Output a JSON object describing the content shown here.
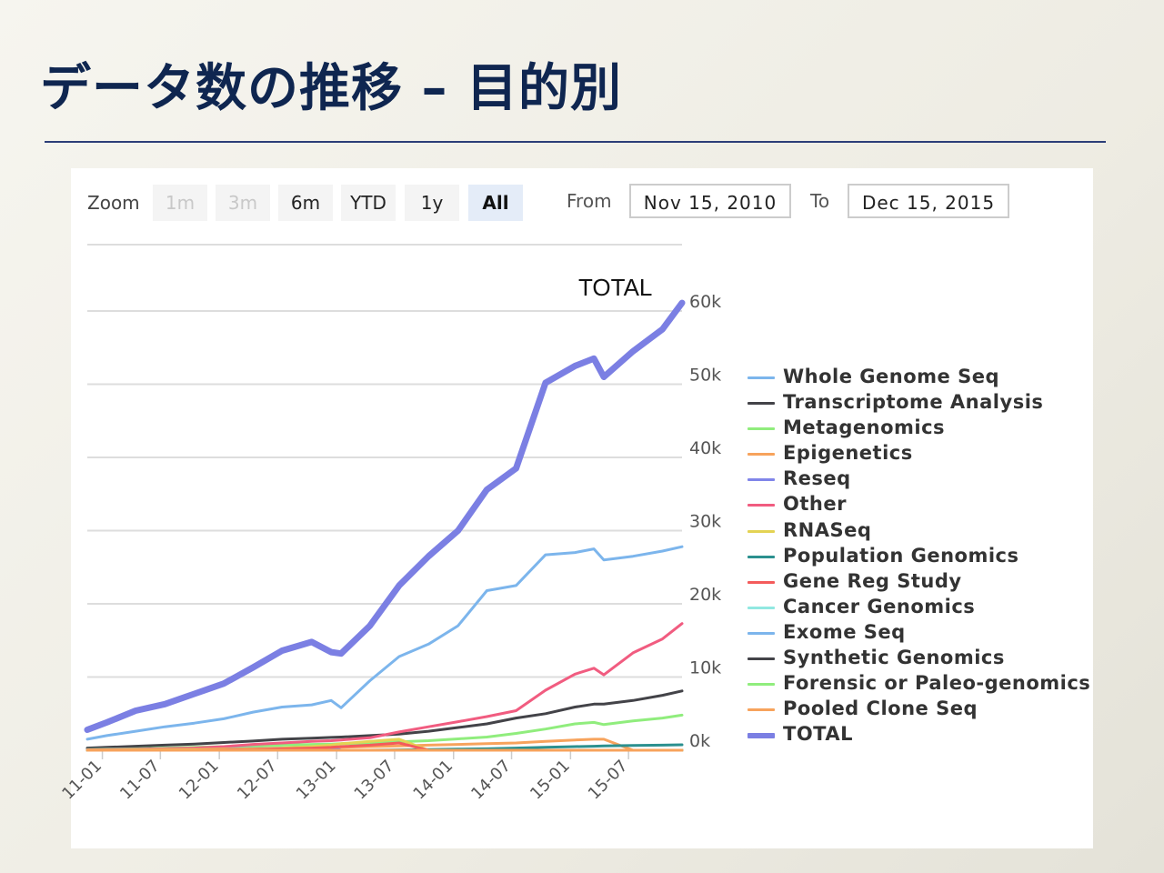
{
  "slide": {
    "title": "データ数の推移 – 目的別"
  },
  "toolbar": {
    "zoom_label": "Zoom",
    "buttons": [
      {
        "label": "1m",
        "state": "disabled"
      },
      {
        "label": "3m",
        "state": "disabled"
      },
      {
        "label": "6m",
        "state": "normal"
      },
      {
        "label": "YTD",
        "state": "normal"
      },
      {
        "label": "1y",
        "state": "normal"
      },
      {
        "label": "All",
        "state": "active"
      }
    ],
    "from_label": "From",
    "from_value": "Nov 15, 2010",
    "to_label": "To",
    "to_value": "Dec 15, 2015"
  },
  "chart_data": {
    "type": "line",
    "annotation": "TOTAL",
    "grid": true,
    "legend_position": "right",
    "y_axis_side": "right",
    "ylim": [
      0,
      60000
    ],
    "yticks": [
      "0k",
      "10k",
      "20k",
      "30k",
      "40k",
      "50k",
      "60k"
    ],
    "xticks": [
      "11-01",
      "11-07",
      "12-01",
      "12-07",
      "13-01",
      "13-07",
      "14-01",
      "14-07",
      "15-01",
      "15-07"
    ],
    "x": [
      "2010-11",
      "2011-01",
      "2011-04",
      "2011-07",
      "2011-10",
      "2012-01",
      "2012-04",
      "2012-07",
      "2012-10",
      "2012-12",
      "2013-01",
      "2013-04",
      "2013-07",
      "2013-10",
      "2014-01",
      "2014-04",
      "2014-07",
      "2014-10",
      "2015-01",
      "2015-03",
      "2015-04",
      "2015-07",
      "2015-10",
      "2015-12"
    ],
    "series": [
      {
        "name": "Whole Genome Seq",
        "color": "#7cb5ec",
        "values": [
          1500,
          2000,
          2600,
          3200,
          3700,
          4300,
          5200,
          5900,
          6200,
          6800,
          5800,
          9500,
          12800,
          14500,
          17000,
          21800,
          22500,
          26700,
          27000,
          27500,
          26000,
          26500,
          27200,
          27800
        ]
      },
      {
        "name": "Transcriptome Analysis",
        "color": "#434348",
        "values": [
          300,
          400,
          550,
          700,
          850,
          1050,
          1250,
          1500,
          1650,
          1750,
          1800,
          2000,
          2200,
          2600,
          3100,
          3600,
          4400,
          5000,
          5900,
          6300,
          6300,
          6800,
          7500,
          8100
        ]
      },
      {
        "name": "Metagenomics",
        "color": "#90ed7d",
        "values": [
          100,
          150,
          200,
          300,
          400,
          500,
          600,
          700,
          800,
          850,
          900,
          1000,
          1150,
          1300,
          1550,
          1800,
          2300,
          2900,
          3600,
          3800,
          3500,
          4000,
          4400,
          4800
        ]
      },
      {
        "name": "Epigenetics",
        "color": "#f7a35c",
        "values": [
          50,
          60,
          80,
          100,
          120,
          150,
          200,
          250,
          300,
          350,
          400,
          500,
          600,
          700,
          800,
          900,
          1000,
          1200,
          1400,
          1500,
          1500,
          0,
          0,
          0
        ]
      },
      {
        "name": "Reseq",
        "color": "#8085e9",
        "values": [
          80,
          100,
          120,
          150,
          180,
          200,
          250,
          300,
          350,
          400,
          0,
          0,
          0,
          0,
          0,
          0,
          0,
          0,
          0,
          0,
          0,
          0,
          0,
          0
        ]
      },
      {
        "name": "Other",
        "color": "#f15c80",
        "values": [
          50,
          80,
          120,
          200,
          300,
          500,
          800,
          1000,
          1200,
          1300,
          1400,
          1700,
          2500,
          3200,
          3900,
          4600,
          5400,
          8200,
          10400,
          11200,
          10300,
          13300,
          15200,
          17300
        ]
      },
      {
        "name": "RNASeq",
        "color": "#e4d354",
        "values": [
          20,
          30,
          50,
          80,
          100,
          150,
          200,
          300,
          500,
          700,
          900,
          1200,
          1500,
          0,
          0,
          0,
          0,
          0,
          0,
          0,
          0,
          0,
          0,
          0
        ]
      },
      {
        "name": "Population Genomics",
        "color": "#2b908f",
        "values": [
          0,
          0,
          0,
          0,
          0,
          0,
          0,
          0,
          0,
          0,
          0,
          0,
          50,
          100,
          150,
          200,
          300,
          400,
          500,
          550,
          600,
          650,
          700,
          750
        ]
      },
      {
        "name": "Gene Reg Study",
        "color": "#f45b5b",
        "values": [
          0,
          0,
          0,
          0,
          0,
          50,
          100,
          200,
          300,
          400,
          500,
          700,
          1000,
          0,
          0,
          0,
          0,
          0,
          0,
          0,
          0,
          0,
          0,
          0
        ]
      },
      {
        "name": "Cancer Genomics",
        "color": "#91e8e1",
        "values": [
          0,
          0,
          0,
          0,
          0,
          0,
          0,
          0,
          0,
          0,
          0,
          0,
          0,
          0,
          0,
          0,
          0,
          0,
          0,
          0,
          0,
          0,
          0,
          0
        ]
      },
      {
        "name": "Exome Seq",
        "color": "#7cb5ec",
        "values": [
          0,
          0,
          0,
          0,
          0,
          0,
          0,
          0,
          0,
          0,
          0,
          0,
          0,
          0,
          0,
          0,
          0,
          0,
          0,
          0,
          0,
          0,
          0,
          0
        ]
      },
      {
        "name": "Synthetic Genomics",
        "color": "#434348",
        "values": [
          0,
          0,
          0,
          0,
          0,
          0,
          0,
          0,
          0,
          0,
          0,
          0,
          0,
          0,
          0,
          0,
          0,
          0,
          0,
          0,
          0,
          0,
          0,
          0
        ]
      },
      {
        "name": "Forensic or Paleo-genomics",
        "color": "#90ed7d",
        "values": [
          0,
          0,
          0,
          0,
          0,
          0,
          0,
          0,
          0,
          0,
          0,
          0,
          0,
          0,
          0,
          0,
          0,
          0,
          0,
          0,
          0,
          0,
          0,
          0
        ]
      },
      {
        "name": "Pooled Clone Seq",
        "color": "#f7a35c",
        "values": [
          0,
          0,
          0,
          0,
          0,
          0,
          0,
          0,
          0,
          0,
          0,
          0,
          0,
          0,
          0,
          0,
          0,
          0,
          0,
          0,
          0,
          0,
          0,
          0
        ]
      },
      {
        "name": "TOTAL",
        "color": "#7b7fe3",
        "values": [
          2800,
          3800,
          5400,
          6300,
          7700,
          9100,
          11300,
          13600,
          14800,
          13400,
          13200,
          17000,
          22500,
          26500,
          30000,
          35600,
          38500,
          50200,
          52500,
          53500,
          51000,
          54500,
          57500,
          61100
        ]
      }
    ]
  }
}
